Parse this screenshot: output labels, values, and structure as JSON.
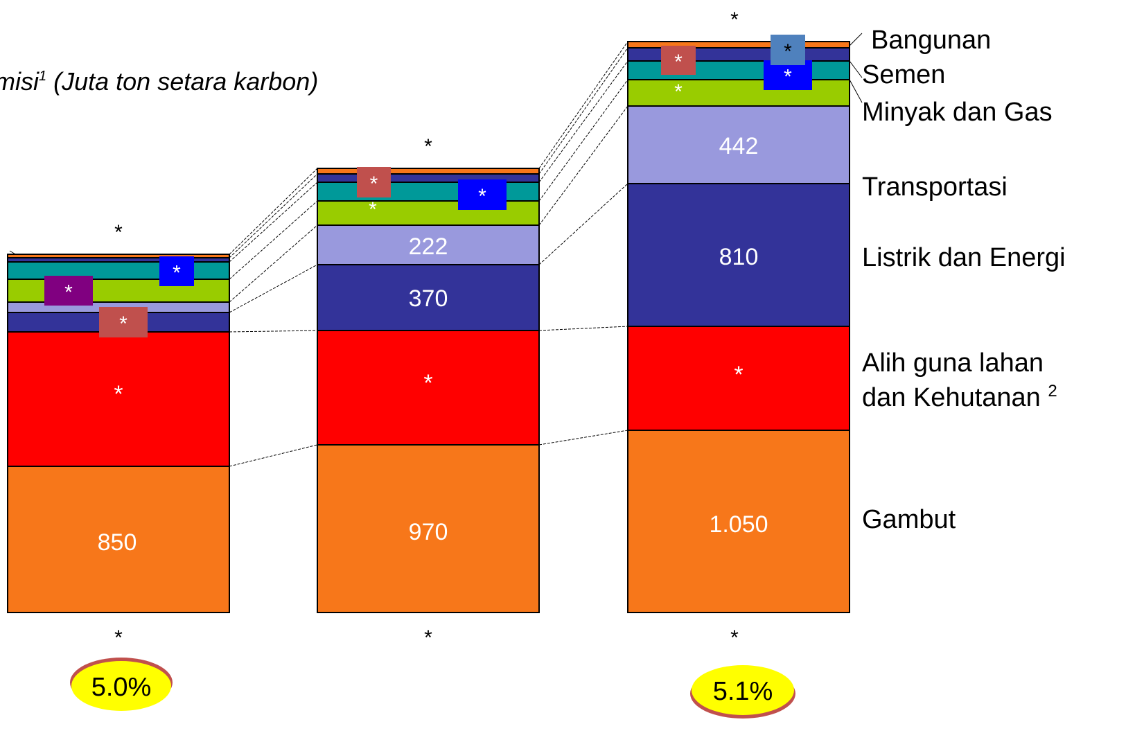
{
  "chart_data": {
    "type": "bar",
    "stacked": true,
    "title_prefix": "misi",
    "title_sup": "1",
    "title_suffix": " (Juta ton setara karbon)",
    "categories": [
      "*",
      "*",
      "*"
    ],
    "totals": [
      "*",
      "*",
      "*"
    ],
    "series": [
      {
        "name": "Gambut",
        "color": "#F7771A",
        "values": [
          850,
          970,
          1050
        ],
        "labels": [
          "850",
          "970",
          "1.050"
        ]
      },
      {
        "name": "Alih guna lahan dan Kehutanan",
        "name_line1": "Alih guna lahan",
        "name_line2": "dan Kehutanan",
        "name_sup": "2",
        "color": "#FF0000",
        "labels": [
          "*",
          "*",
          "*"
        ]
      },
      {
        "name": "Listrik dan Energi",
        "color": "#333399",
        "values": [
          null,
          370,
          810
        ],
        "labels": [
          "",
          "370",
          "810"
        ]
      },
      {
        "name": "Transportasi",
        "color": "#9999DD",
        "values": [
          null,
          222,
          442
        ],
        "labels": [
          "",
          "222",
          "442"
        ]
      },
      {
        "name": "Minyak dan Gas",
        "color": "#99CC00",
        "labels": [
          "",
          "",
          ""
        ]
      },
      {
        "name": "Semen",
        "color": "#009999",
        "labels": [
          "",
          "",
          ""
        ]
      },
      {
        "name": "Bangunan",
        "color": "#333399",
        "labels": [
          "",
          "",
          ""
        ]
      },
      {
        "name": "",
        "color": "#F7771A",
        "labels": [
          "",
          "",
          ""
        ]
      }
    ],
    "growth_labels": [
      "5.0%",
      "5.1%"
    ],
    "marker_label": "*"
  }
}
